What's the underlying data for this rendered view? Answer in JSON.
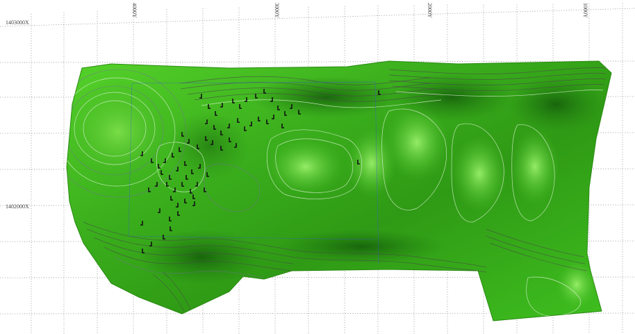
{
  "window": {
    "title": ""
  },
  "grid": {
    "x_labels": [
      "4000Y",
      "3000Y",
      "2000Y",
      "1000Y"
    ],
    "y_labels": [
      "1403000X",
      "1402000X"
    ]
  },
  "map": {
    "surface_color": "#3fbf1f",
    "surface_dark": "#1f7a10",
    "surface_light": "#8ef060",
    "contour_colors": {
      "light": "#d8f0d0",
      "dark": "#4a4a4a",
      "purple": "#7a6aa8"
    },
    "icons": [
      "terrain-surface-icon",
      "drillhole-marker-icon"
    ]
  }
}
